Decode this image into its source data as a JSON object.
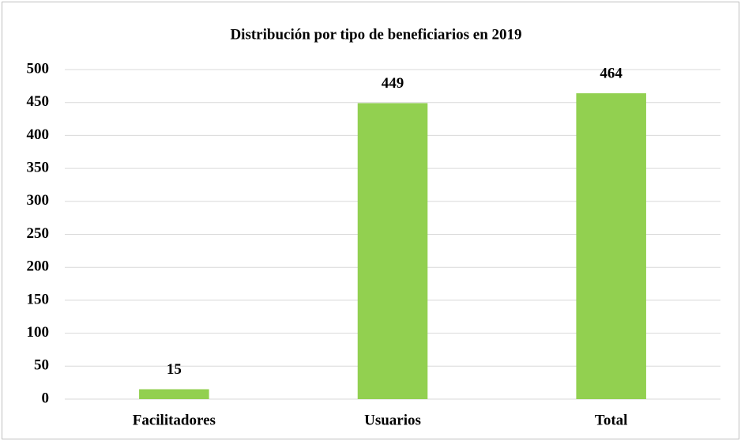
{
  "chart_data": {
    "type": "bar",
    "title": "Distribución por tipo de beneficiarios en 2019",
    "categories": [
      "Facilitadores",
      "Usuarios",
      "Total"
    ],
    "values": [
      15,
      449,
      464
    ],
    "color": "#92d050",
    "ylim": [
      0,
      500
    ],
    "yticks": [
      0,
      50,
      100,
      150,
      200,
      250,
      300,
      350,
      400,
      450,
      500
    ],
    "grid": true
  }
}
